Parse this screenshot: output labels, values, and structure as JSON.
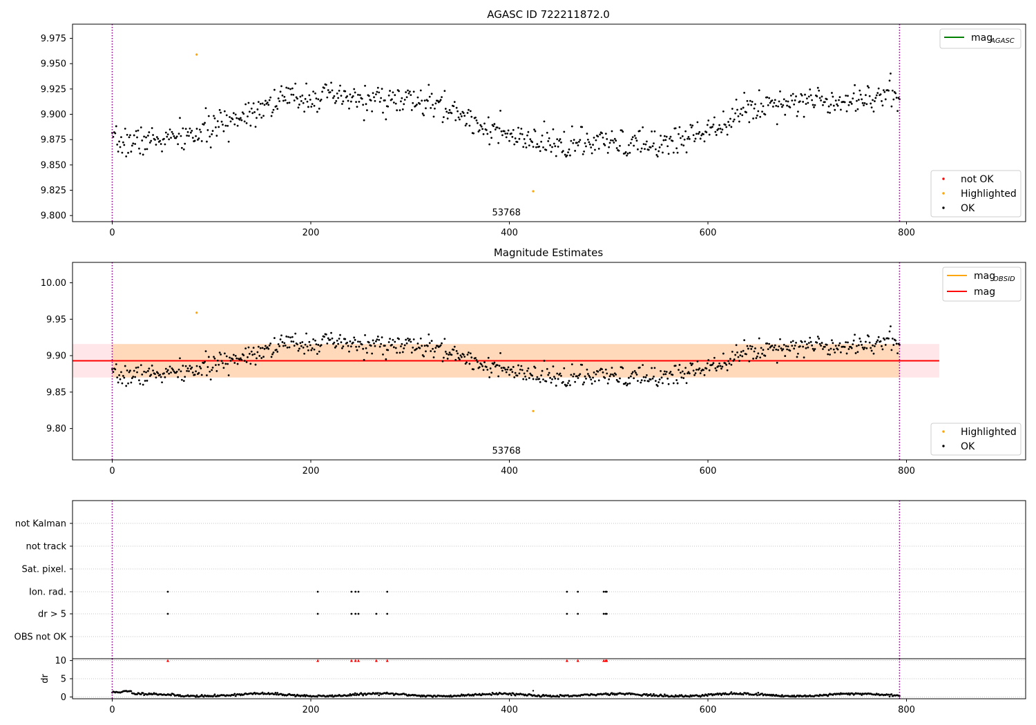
{
  "chart_data": [
    {
      "type": "scatter",
      "title": "AGASC ID 722211872.0",
      "xlim": [
        -40,
        920
      ],
      "ylim": [
        9.794,
        9.989
      ],
      "xticks": [
        0,
        200,
        400,
        600,
        800
      ],
      "yticks": [
        "9.800",
        "9.825",
        "9.850",
        "9.875",
        "9.900",
        "9.925",
        "9.950",
        "9.975"
      ],
      "vlines": [
        0,
        793
      ],
      "vline_color": "#800080",
      "obsid_label": {
        "text": "53768",
        "x": 397
      },
      "legend_lines": [
        {
          "label": "mag",
          "sub": "AGASC",
          "color": "#008000"
        }
      ],
      "legend_points": [
        {
          "label": "not OK",
          "color": "#ff0000"
        },
        {
          "label": "Highlighted",
          "color": "#ffa500"
        },
        {
          "label": "OK",
          "color": "#000000"
        }
      ],
      "highlighted": [
        [
          85,
          9.959
        ],
        [
          424,
          9.824
        ]
      ],
      "series_model": {
        "count": 792,
        "x_end": 793,
        "mean": 9.893,
        "components": [
          {
            "amp": 0.026,
            "period": 505,
            "phase": 4.9
          },
          {
            "amp": 0.004,
            "period": 160,
            "phase": 1.2
          }
        ],
        "noise": 0.012,
        "seed": 7
      },
      "grid": false
    },
    {
      "type": "scatter",
      "title": "Magnitude Estimates",
      "xlim": [
        -40,
        920
      ],
      "ylim": [
        9.757,
        10.028
      ],
      "xticks": [
        0,
        200,
        400,
        600,
        800
      ],
      "yticks": [
        "9.80",
        "9.85",
        "9.90",
        "9.95",
        "10.00"
      ],
      "vlines": [
        0,
        793
      ],
      "vline_color": "#800080",
      "obsid_label": {
        "text": "53768",
        "x": 397
      },
      "mag_line": {
        "value": 9.893,
        "color": "#ff0000",
        "x_range": [
          -40,
          833
        ]
      },
      "mag_band": {
        "low": 9.87,
        "high": 9.916,
        "x_range": [
          -40,
          833
        ],
        "color": "#ffb6c1"
      },
      "obsid_band": {
        "low": 9.87,
        "high": 9.916,
        "x_range": [
          0,
          793
        ],
        "color": "#ffa500"
      },
      "legend_lines": [
        {
          "label": "mag",
          "sub": "OBSID",
          "color": "#ffa500"
        },
        {
          "label": "mag",
          "sub": "",
          "color": "#ff0000"
        }
      ],
      "legend_points": [
        {
          "label": "Highlighted",
          "color": "#ffa500"
        },
        {
          "label": "OK",
          "color": "#000000"
        }
      ],
      "highlighted": [
        [
          85,
          9.959
        ],
        [
          424,
          9.824
        ]
      ],
      "grid": false
    },
    {
      "type": "scatter",
      "title": "",
      "xlim": [
        -40,
        920
      ],
      "xticks": [
        0,
        200,
        400,
        600,
        800
      ],
      "vlines": [
        0,
        793
      ],
      "vline_color": "#800080",
      "flag_rows": [
        "not Kalman",
        "not track",
        "Sat. pixel.",
        "Ion. rad.",
        "dr > 5",
        "OBS not OK"
      ],
      "flags": {
        "Ion. rad.": [
          56,
          207,
          241,
          245,
          248,
          277,
          458,
          469,
          495,
          497,
          498
        ],
        "dr > 5": [
          56,
          207,
          241,
          245,
          248,
          266,
          277,
          458,
          469,
          495,
          497,
          498
        ]
      },
      "grid": true
    },
    {
      "type": "scatter",
      "title": "",
      "ylabel": "dr",
      "xlim": [
        -40,
        920
      ],
      "ylim": [
        -0.5,
        10.5
      ],
      "xticks": [
        0,
        200,
        400,
        600,
        800
      ],
      "yticks": [
        0,
        5,
        10
      ],
      "vlines": [
        0,
        793
      ],
      "vline_color": "#800080",
      "dr_capped_at": 10,
      "dr_capped_x": [
        56,
        207,
        241,
        245,
        248,
        266,
        277,
        458,
        469,
        495,
        497,
        498
      ],
      "dr_extra": [
        [
          424,
          1.7
        ]
      ],
      "dr_model": {
        "base": 0.55,
        "amp": 0.35,
        "period": 120,
        "noise": 0.15,
        "seed": 11
      },
      "grid": true
    }
  ]
}
